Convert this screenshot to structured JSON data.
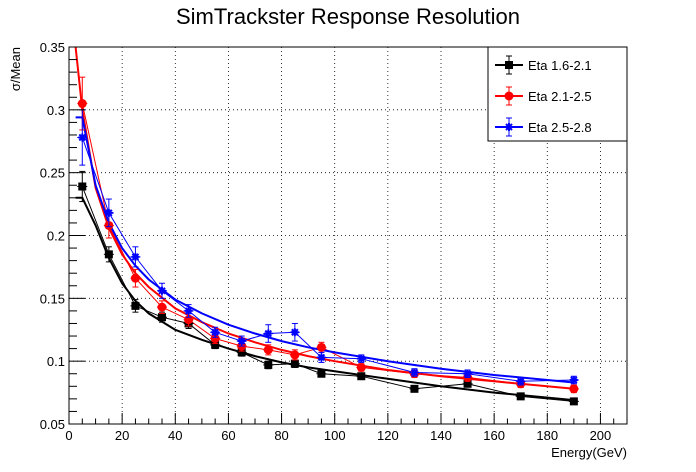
{
  "chart_data": {
    "type": "scatter",
    "title": "SimTrackster Response Resolution",
    "xlabel": "Energy(GeV)",
    "ylabel": "σ/Mean",
    "xlim": [
      0,
      210
    ],
    "ylim": [
      0.05,
      0.35
    ],
    "x_ticks": [
      "0",
      "20",
      "40",
      "60",
      "80",
      "100",
      "120",
      "140",
      "160",
      "180",
      "200"
    ],
    "y_ticks": [
      "0.05",
      "0.1",
      "0.15",
      "0.2",
      "0.25",
      "0.3",
      "0.35"
    ],
    "grid": true,
    "legend_position": "top-right",
    "series": [
      {
        "name": "Eta 1.6-2.1",
        "color": "#000000",
        "marker": "square",
        "x": [
          5,
          15,
          25,
          35,
          45,
          55,
          65,
          75,
          85,
          95,
          110,
          130,
          150,
          170,
          190
        ],
        "y": [
          0.239,
          0.185,
          0.144,
          0.135,
          0.13,
          0.113,
          0.107,
          0.097,
          0.098,
          0.09,
          0.088,
          0.078,
          0.082,
          0.072,
          0.068
        ],
        "yerr": [
          0.012,
          0.006,
          0.005,
          0.004,
          0.004,
          0.003,
          0.003,
          0.003,
          0.003,
          0.002,
          0.002,
          0.002,
          0.002,
          0.002,
          0.002
        ],
        "fit_x": [
          2.5,
          5,
          10,
          15,
          20,
          25,
          30,
          40,
          50,
          60,
          70,
          80,
          90,
          100,
          120,
          140,
          160,
          190
        ],
        "fit_y": [
          0.23,
          0.23,
          0.208,
          0.182,
          0.162,
          0.148,
          0.138,
          0.125,
          0.117,
          0.11,
          0.104,
          0.099,
          0.095,
          0.092,
          0.086,
          0.08,
          0.075,
          0.069
        ]
      },
      {
        "name": "Eta 2.1-2.5",
        "color": "#ff0000",
        "marker": "circle",
        "x": [
          5,
          15,
          25,
          35,
          45,
          55,
          65,
          75,
          85,
          95,
          110,
          130,
          150,
          170,
          190
        ],
        "y": [
          0.305,
          0.208,
          0.166,
          0.143,
          0.133,
          0.118,
          0.112,
          0.109,
          0.105,
          0.111,
          0.095,
          0.09,
          0.087,
          0.082,
          0.078
        ],
        "yerr": [
          0.021,
          0.01,
          0.007,
          0.005,
          0.005,
          0.004,
          0.004,
          0.004,
          0.004,
          0.004,
          0.003,
          0.003,
          0.003,
          0.003,
          0.003
        ],
        "fit_x": [
          2.5,
          5,
          10,
          15,
          20,
          25,
          30,
          40,
          50,
          60,
          70,
          80,
          90,
          100,
          120,
          140,
          160,
          190
        ],
        "fit_y": [
          0.35,
          0.3,
          0.238,
          0.206,
          0.185,
          0.17,
          0.159,
          0.142,
          0.131,
          0.122,
          0.115,
          0.109,
          0.104,
          0.1,
          0.093,
          0.088,
          0.084,
          0.078
        ]
      },
      {
        "name": "Eta 2.5-2.8",
        "color": "#0000ff",
        "marker": "star",
        "x": [
          5,
          15,
          25,
          35,
          45,
          55,
          65,
          75,
          85,
          95,
          110,
          130,
          150,
          170,
          190
        ],
        "y": [
          0.278,
          0.218,
          0.183,
          0.156,
          0.14,
          0.123,
          0.116,
          0.122,
          0.123,
          0.103,
          0.102,
          0.091,
          0.09,
          0.084,
          0.085
        ],
        "yerr": [
          0.022,
          0.011,
          0.008,
          0.006,
          0.005,
          0.004,
          0.004,
          0.007,
          0.007,
          0.004,
          0.003,
          0.003,
          0.003,
          0.003,
          0.003
        ],
        "fit_x": [
          2.5,
          5,
          10,
          15,
          20,
          25,
          30,
          40,
          50,
          60,
          70,
          80,
          90,
          100,
          120,
          140,
          160,
          190
        ],
        "fit_y": [
          0.294,
          0.294,
          0.24,
          0.21,
          0.19,
          0.176,
          0.165,
          0.149,
          0.138,
          0.129,
          0.122,
          0.116,
          0.111,
          0.107,
          0.1,
          0.094,
          0.089,
          0.083
        ]
      }
    ]
  }
}
